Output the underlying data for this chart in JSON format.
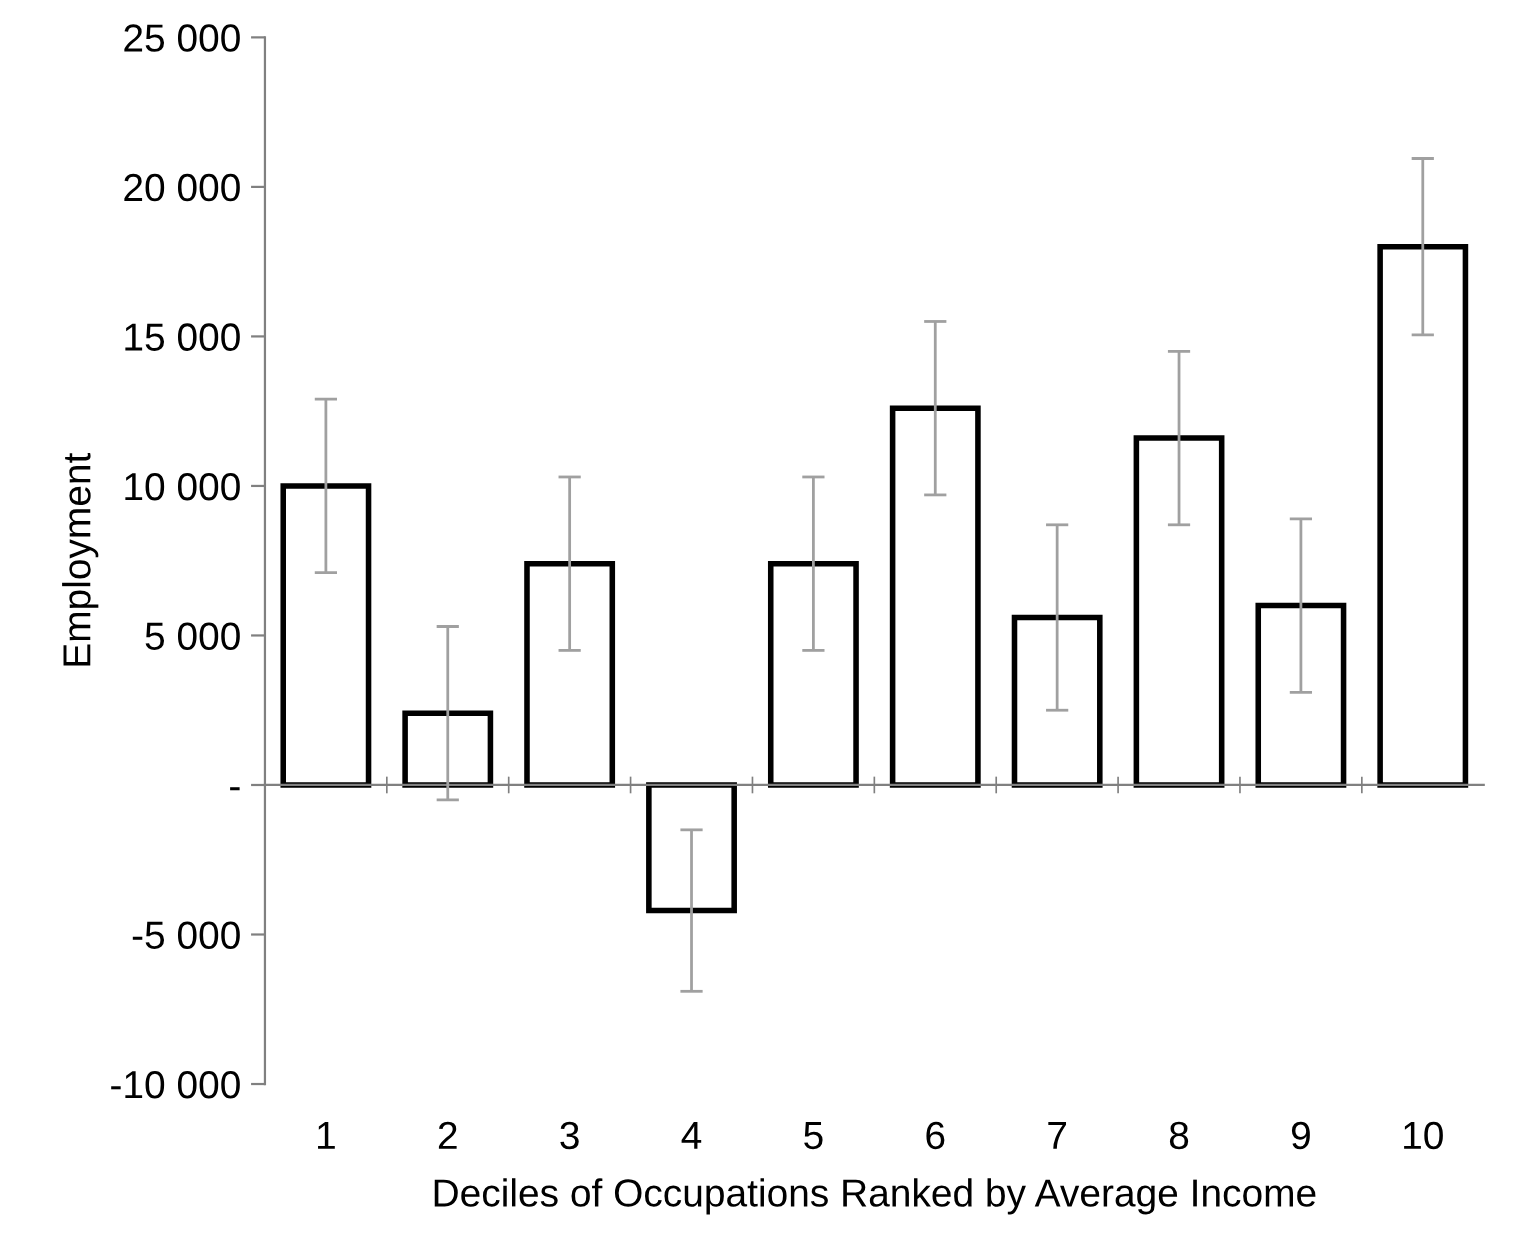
{
  "chart_data": {
    "type": "bar",
    "xlabel": "Deciles of Occupations Ranked by Average Income",
    "ylabel": "Employment",
    "categories": [
      "1",
      "2",
      "3",
      "4",
      "5",
      "6",
      "7",
      "8",
      "9",
      "10"
    ],
    "values": [
      10000,
      2400,
      7400,
      -4200,
      7400,
      12600,
      5600,
      11600,
      6000,
      18000
    ],
    "errors": [
      2900,
      2900,
      2900,
      2700,
      2900,
      2900,
      3100,
      2900,
      2900,
      2950
    ],
    "color": "#ffffff",
    "ylim": [
      -10000,
      25000
    ],
    "yticks": [
      {
        "value": -10000,
        "label": "-10 000"
      },
      {
        "value": -5000,
        "label": "-5 000"
      },
      {
        "value": 0,
        "label": "-"
      },
      {
        "value": 5000,
        "label": "5 000"
      },
      {
        "value": 10000,
        "label": "10 000"
      },
      {
        "value": 15000,
        "label": "15 000"
      },
      {
        "value": 20000,
        "label": "20 000"
      },
      {
        "value": 25000,
        "label": "25 000"
      }
    ],
    "legend": false
  }
}
